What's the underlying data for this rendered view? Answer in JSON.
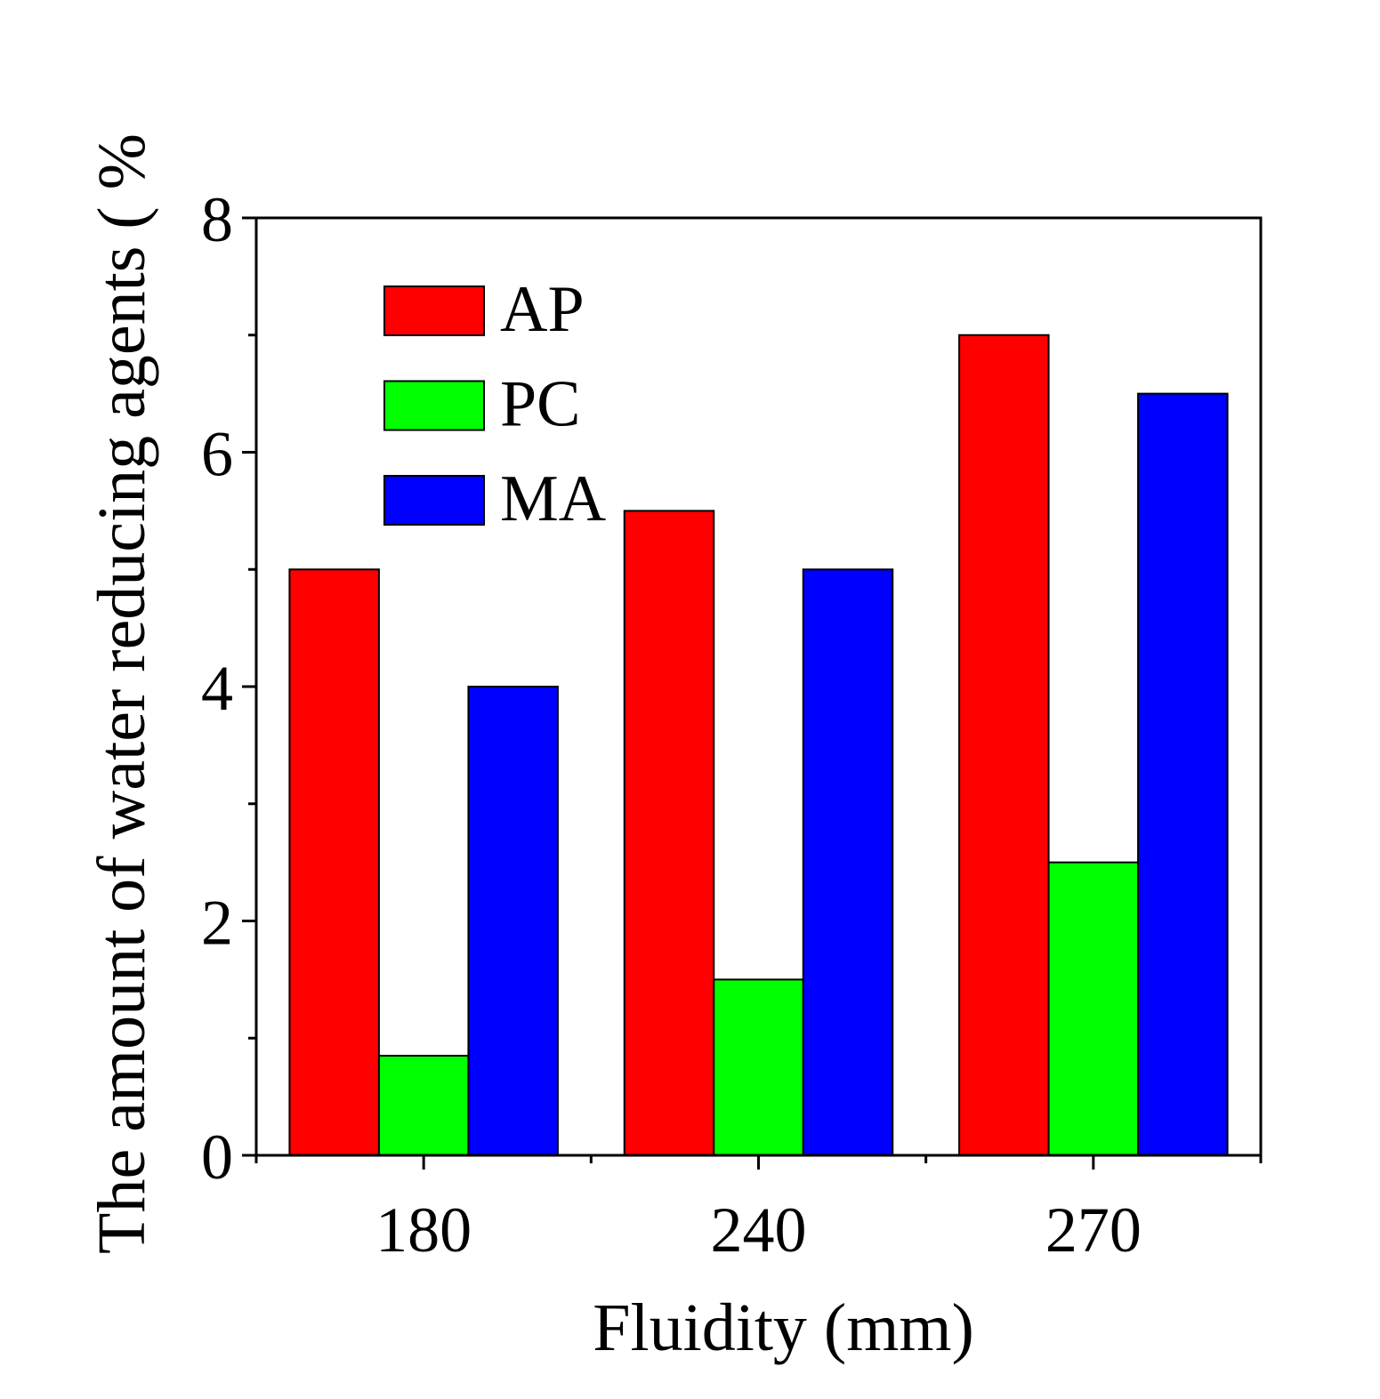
{
  "chart_data": {
    "type": "bar",
    "title": "",
    "xlabel": "Fluidity (mm)",
    "ylabel": "The amount of water reducing agents ( %",
    "categories": [
      "180",
      "240",
      "270"
    ],
    "series": [
      {
        "name": "AP",
        "color": "#ff0000",
        "values": [
          5.0,
          5.5,
          7.0
        ]
      },
      {
        "name": "PC",
        "color": "#00ff00",
        "values": [
          0.85,
          1.5,
          2.5
        ]
      },
      {
        "name": "MA",
        "color": "#0000ff",
        "values": [
          4.0,
          5.0,
          6.5
        ]
      }
    ],
    "ylim": [
      0,
      8
    ],
    "yticks": [
      "0",
      "2",
      "4",
      "6",
      "8"
    ],
    "y_major_step": 2,
    "y_minor_step": 1,
    "grid": false,
    "legend_position": "top-left"
  }
}
